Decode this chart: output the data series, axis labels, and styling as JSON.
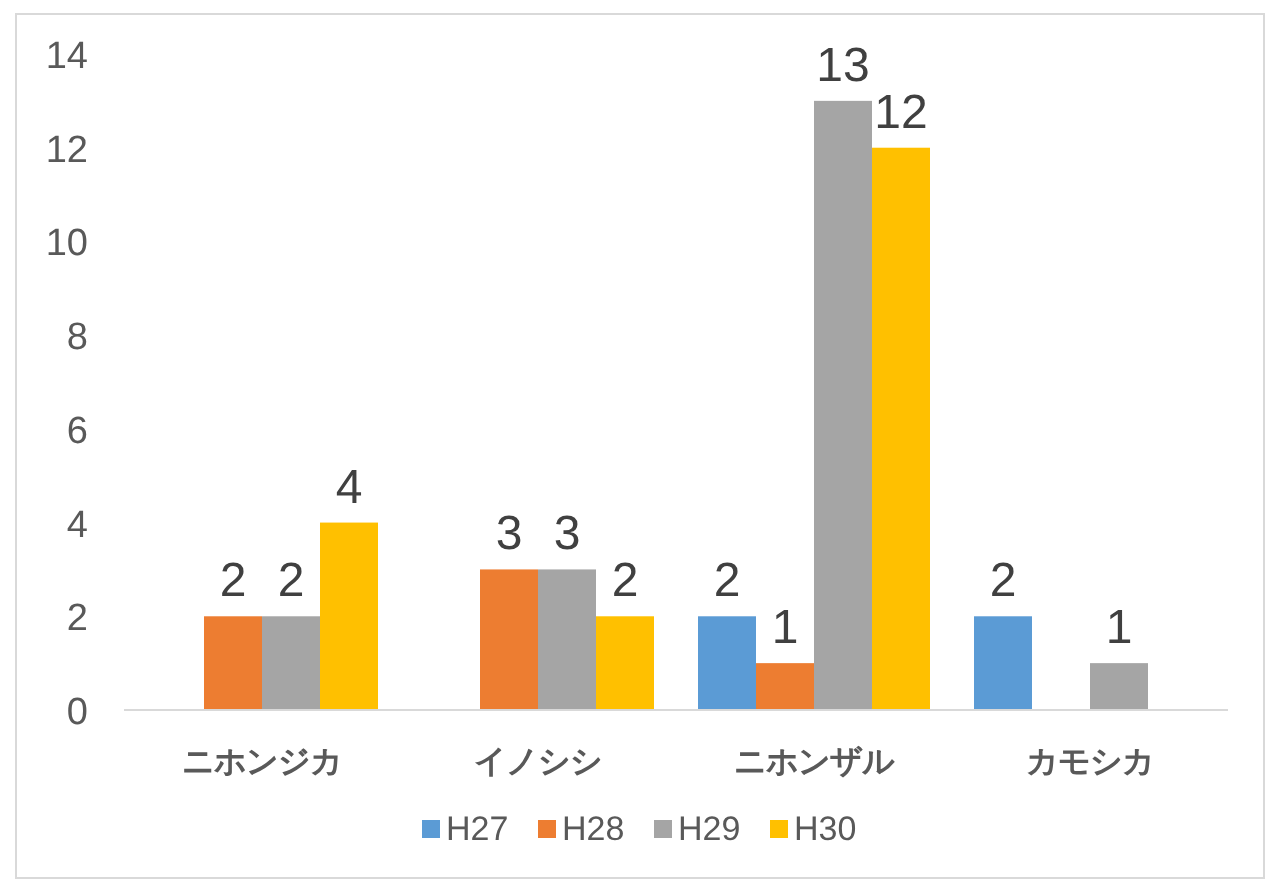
{
  "chart_data": {
    "type": "bar",
    "categories": [
      "ニホンジカ",
      "イノシシ",
      "ニホンザル",
      "カモシカ"
    ],
    "series": [
      {
        "name": "H27",
        "color": "#5b9bd5",
        "values": [
          null,
          null,
          2,
          2
        ]
      },
      {
        "name": "H28",
        "color": "#ed7d31",
        "values": [
          2,
          3,
          1,
          null
        ]
      },
      {
        "name": "H29",
        "color": "#a5a5a5",
        "values": [
          2,
          3,
          13,
          1
        ]
      },
      {
        "name": "H30",
        "color": "#ffc000",
        "values": [
          4,
          2,
          12,
          null
        ]
      }
    ],
    "ylim": [
      0,
      14
    ],
    "yticks": [
      0,
      2,
      4,
      6,
      8,
      10,
      12,
      14
    ],
    "data_labels": true,
    "grid": false,
    "legend": "bottom"
  }
}
